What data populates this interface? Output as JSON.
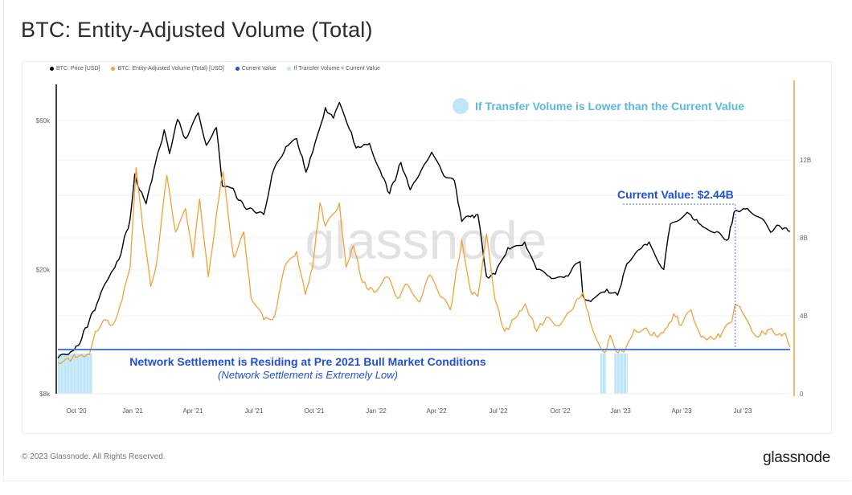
{
  "page": {
    "title": "BTC: Entity-Adjusted Volume (Total)",
    "copyright": "© 2023 Glassnode. All Rights Reserved.",
    "brand": "glassnode",
    "watermark": "glassnode"
  },
  "legend": [
    {
      "label": "BTC: Price [USD]",
      "color": "#000000"
    },
    {
      "label": "BTC: Entity-Adjusted Volume (Total) [USD]",
      "color": "#f0a13a"
    },
    {
      "label": "Current Value",
      "color": "#1f4fd6"
    },
    {
      "label": "If Transfer Volume < Current Value",
      "color": "#bfe6f7"
    }
  ],
  "annotations": {
    "top_note": "If Transfer Volume is Lower than the Current Value",
    "current_value": "Current Value: $2.44B",
    "settlement_main": "Network Settlement is Residing at Pre 2021 Bull Market Conditions",
    "settlement_sub": "(Network Settlement is Extremely Low)"
  },
  "colors": {
    "price": "#000000",
    "volume": "#f0a13a",
    "current_value": "#4a7bd8",
    "annotation_blue": "#1f4fd6",
    "highlight": "#bfe6f7",
    "top_note": "#5ab8e0"
  },
  "chart_data": {
    "type": "line",
    "title": "BTC: Entity-Adjusted Volume (Total)",
    "xlabel": "",
    "ylabel_left": "BTC: Price [USD]",
    "ylabel_right": "Entity-Adjusted Volume (Total) [USD]",
    "x_range": [
      "2020-09-15",
      "2023-09-15"
    ],
    "x_ticks": [
      "Oct '20",
      "Jan '21",
      "Apr '21",
      "Jul '21",
      "Oct '21",
      "Jan '22",
      "Apr '22",
      "Jul '22",
      "Oct '22",
      "Jan '23",
      "Apr '23",
      "Jul '23"
    ],
    "y_left": {
      "scale": "log",
      "range": [
        8000,
        75000
      ],
      "ticks": [
        {
          "value": 8000,
          "label": "$8k"
        },
        {
          "value": 20000,
          "label": "$20k"
        },
        {
          "value": 60000,
          "label": "$60k"
        }
      ]
    },
    "y_right": {
      "scale": "linear",
      "range": [
        0,
        15500000000
      ],
      "ticks": [
        {
          "value": 0,
          "label": "0"
        },
        {
          "value": 4000000000,
          "label": "4B"
        },
        {
          "value": 8000000000,
          "label": "8B"
        },
        {
          "value": 12000000000,
          "label": "12B"
        }
      ]
    },
    "current_value": 2440000000,
    "current_value_date": "2023-06-25",
    "grid": true,
    "legend_position": "top-left",
    "series": [
      {
        "name": "BTC: Price [USD]",
        "axis": "left",
        "points": [
          [
            "2020-09-15",
            10400
          ],
          [
            "2020-10-01",
            10700
          ],
          [
            "2020-10-15",
            11400
          ],
          [
            "2020-11-01",
            13700
          ],
          [
            "2020-11-15",
            16000
          ],
          [
            "2020-12-01",
            19000
          ],
          [
            "2020-12-15",
            21500
          ],
          [
            "2021-01-01",
            29000
          ],
          [
            "2021-01-08",
            40500
          ],
          [
            "2021-01-15",
            36000
          ],
          [
            "2021-01-25",
            32500
          ],
          [
            "2021-02-08",
            44000
          ],
          [
            "2021-02-21",
            56000
          ],
          [
            "2021-03-01",
            47000
          ],
          [
            "2021-03-13",
            60500
          ],
          [
            "2021-03-25",
            52500
          ],
          [
            "2021-04-13",
            63500
          ],
          [
            "2021-04-25",
            50000
          ],
          [
            "2021-05-10",
            57000
          ],
          [
            "2021-05-19",
            37000
          ],
          [
            "2021-06-01",
            36500
          ],
          [
            "2021-06-21",
            31700
          ],
          [
            "2021-07-20",
            30000
          ],
          [
            "2021-08-01",
            40000
          ],
          [
            "2021-08-22",
            49500
          ],
          [
            "2021-09-07",
            52500
          ],
          [
            "2021-09-21",
            41000
          ],
          [
            "2021-10-01",
            47500
          ],
          [
            "2021-10-20",
            66000
          ],
          [
            "2021-11-01",
            61000
          ],
          [
            "2021-11-10",
            68500
          ],
          [
            "2021-11-28",
            55000
          ],
          [
            "2021-12-05",
            49000
          ],
          [
            "2021-12-25",
            50700
          ],
          [
            "2022-01-10",
            41500
          ],
          [
            "2022-01-24",
            35000
          ],
          [
            "2022-02-10",
            44000
          ],
          [
            "2022-02-24",
            36000
          ],
          [
            "2022-03-28",
            47500
          ],
          [
            "2022-04-15",
            40000
          ],
          [
            "2022-05-01",
            38500
          ],
          [
            "2022-05-12",
            28500
          ],
          [
            "2022-05-25",
            29500
          ],
          [
            "2022-06-05",
            30000
          ],
          [
            "2022-06-18",
            19000
          ],
          [
            "2022-07-01",
            19300
          ],
          [
            "2022-07-20",
            23500
          ],
          [
            "2022-08-14",
            24500
          ],
          [
            "2022-09-01",
            20000
          ],
          [
            "2022-09-20",
            19000
          ],
          [
            "2022-10-15",
            19100
          ],
          [
            "2022-11-05",
            21200
          ],
          [
            "2022-11-09",
            16500
          ],
          [
            "2022-11-21",
            15800
          ],
          [
            "2022-12-15",
            17300
          ],
          [
            "2022-12-31",
            16550
          ],
          [
            "2023-01-14",
            20900
          ],
          [
            "2023-01-30",
            23000
          ],
          [
            "2023-02-16",
            24500
          ],
          [
            "2023-03-10",
            20000
          ],
          [
            "2023-03-20",
            28000
          ],
          [
            "2023-04-14",
            30500
          ],
          [
            "2023-05-01",
            28200
          ],
          [
            "2023-05-25",
            26200
          ],
          [
            "2023-06-15",
            25100
          ],
          [
            "2023-06-23",
            30500
          ],
          [
            "2023-07-13",
            31400
          ],
          [
            "2023-08-01",
            29300
          ],
          [
            "2023-08-17",
            26300
          ],
          [
            "2023-08-29",
            27700
          ],
          [
            "2023-09-15",
            26500
          ]
        ]
      },
      {
        "name": "BTC: Entity-Adjusted Volume (Total) [USD]",
        "axis": "right",
        "points": [
          [
            "2020-09-15",
            1600000000.0
          ],
          [
            "2020-10-01",
            1800000000.0
          ],
          [
            "2020-10-15",
            1900000000.0
          ],
          [
            "2020-11-01",
            2000000000.0
          ],
          [
            "2020-11-10",
            3200000000.0
          ],
          [
            "2020-11-25",
            3800000000.0
          ],
          [
            "2020-12-05",
            3500000000.0
          ],
          [
            "2020-12-20",
            4800000000.0
          ],
          [
            "2021-01-01",
            6500000000.0
          ],
          [
            "2021-01-10",
            11600000000.0
          ],
          [
            "2021-01-20",
            8500000000.0
          ],
          [
            "2021-02-01",
            5500000000.0
          ],
          [
            "2021-02-10",
            6800000000.0
          ],
          [
            "2021-02-25",
            11200000000.0
          ],
          [
            "2021-03-10",
            8300000000.0
          ],
          [
            "2021-03-25",
            9500000000.0
          ],
          [
            "2021-04-05",
            7000000000.0
          ],
          [
            "2021-04-15",
            10000000000.0
          ],
          [
            "2021-04-28",
            6000000000.0
          ],
          [
            "2021-05-10",
            9200000000.0
          ],
          [
            "2021-05-20",
            11400000000.0
          ],
          [
            "2021-06-05",
            7000000000.0
          ],
          [
            "2021-06-20",
            8300000000.0
          ],
          [
            "2021-07-01",
            4900000000.0
          ],
          [
            "2021-07-20",
            3800000000.0
          ],
          [
            "2021-08-05",
            4000000000.0
          ],
          [
            "2021-08-20",
            6500000000.0
          ],
          [
            "2021-09-07",
            7300000000.0
          ],
          [
            "2021-09-20",
            5100000000.0
          ],
          [
            "2021-10-01",
            6500000000.0
          ],
          [
            "2021-10-12",
            9800000000.0
          ],
          [
            "2021-10-20",
            8600000000.0
          ],
          [
            "2021-11-10",
            9800000000.0
          ],
          [
            "2021-11-20",
            6500000000.0
          ],
          [
            "2021-12-01",
            7600000000.0
          ],
          [
            "2021-12-15",
            5700000000.0
          ],
          [
            "2022-01-01",
            5200000000.0
          ],
          [
            "2022-01-20",
            6000000000.0
          ],
          [
            "2022-02-05",
            4900000000.0
          ],
          [
            "2022-02-20",
            5600000000.0
          ],
          [
            "2022-03-10",
            4700000000.0
          ],
          [
            "2022-03-25",
            6100000000.0
          ],
          [
            "2022-04-10",
            5000000000.0
          ],
          [
            "2022-04-25",
            4300000000.0
          ],
          [
            "2022-05-12",
            7900000000.0
          ],
          [
            "2022-05-25",
            5300000000.0
          ],
          [
            "2022-06-05",
            5000000000.0
          ],
          [
            "2022-06-18",
            8200000000.0
          ],
          [
            "2022-07-01",
            4800000000.0
          ],
          [
            "2022-07-15",
            3200000000.0
          ],
          [
            "2022-08-01",
            3900000000.0
          ],
          [
            "2022-08-15",
            4600000000.0
          ],
          [
            "2022-09-01",
            3200000000.0
          ],
          [
            "2022-09-15",
            3900000000.0
          ],
          [
            "2022-10-01",
            3500000000.0
          ],
          [
            "2022-10-20",
            4200000000.0
          ],
          [
            "2022-11-09",
            5200000000.0
          ],
          [
            "2022-11-20",
            3700000000.0
          ],
          [
            "2022-12-05",
            2400000000.0
          ],
          [
            "2022-12-12",
            2100000000.0
          ],
          [
            "2022-12-20",
            3000000000.0
          ],
          [
            "2023-01-01",
            2100000000.0
          ],
          [
            "2023-01-12",
            2300000000.0
          ],
          [
            "2023-01-25",
            3300000000.0
          ],
          [
            "2023-02-15",
            3200000000.0
          ],
          [
            "2023-03-01",
            2900000000.0
          ],
          [
            "2023-03-15",
            3400000000.0
          ],
          [
            "2023-03-25",
            4100000000.0
          ],
          [
            "2023-04-05",
            3500000000.0
          ],
          [
            "2023-04-20",
            4300000000.0
          ],
          [
            "2023-05-05",
            2900000000.0
          ],
          [
            "2023-05-25",
            2800000000.0
          ],
          [
            "2023-06-05",
            3100000000.0
          ],
          [
            "2023-06-20",
            3700000000.0
          ],
          [
            "2023-06-25",
            4600000000.0
          ],
          [
            "2023-07-05",
            4200000000.0
          ],
          [
            "2023-07-20",
            3200000000.0
          ],
          [
            "2023-08-01",
            3000000000.0
          ],
          [
            "2023-08-15",
            3300000000.0
          ],
          [
            "2023-08-25",
            3000000000.0
          ],
          [
            "2023-09-08",
            3100000000.0
          ],
          [
            "2023-09-15",
            2400000000.0
          ]
        ]
      }
    ],
    "highlight_ranges": [
      [
        "2020-09-15",
        "2020-11-05"
      ],
      [
        "2022-12-05",
        "2022-12-14"
      ],
      [
        "2022-12-26",
        "2023-01-15"
      ]
    ]
  }
}
